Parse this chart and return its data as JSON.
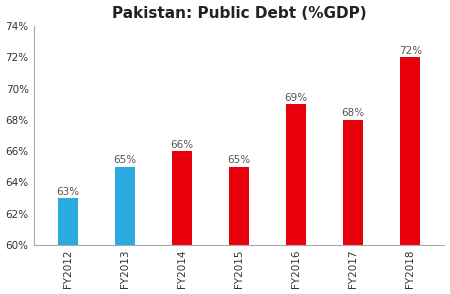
{
  "title": "Pakistan: Public Debt (%GDP)",
  "categories": [
    "FY2012",
    "FY2013",
    "FY2014",
    "FY2015",
    "FY2016",
    "FY2017",
    "FY2018"
  ],
  "values": [
    63,
    65,
    66,
    65,
    69,
    68,
    72
  ],
  "bar_colors": [
    "#29ABE2",
    "#29ABE2",
    "#E8000D",
    "#E8000D",
    "#E8000D",
    "#E8000D",
    "#E8000D"
  ],
  "ylim": [
    60,
    74
  ],
  "yticks": [
    60,
    62,
    64,
    66,
    68,
    70,
    72,
    74
  ],
  "background_color": "#ffffff",
  "label_fontsize": 7.5,
  "title_fontsize": 11,
  "tick_fontsize": 7.5,
  "bar_width": 0.35
}
